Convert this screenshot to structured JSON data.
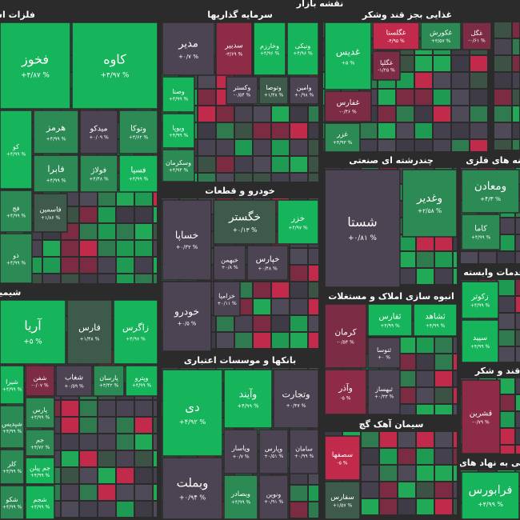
{
  "title": "نقشه بازار",
  "sectors": [
    {
      "name": "فلزات اساسی",
      "tiles": [
        {
          "symbol": "فخوز",
          "change": "+۴/۸۷ %",
          "color": "#17b55b"
        },
        {
          "symbol": "کاوه",
          "change": "+۴/۹۷ %",
          "color": "#17b55b"
        },
        {
          "symbol": "کو",
          "change": "+۴/۹۹ %",
          "color": "#17b55b"
        },
        {
          "symbol": "هرمز",
          "change": "+۴/۹۹ %",
          "color": "#2c8a55"
        },
        {
          "symbol": "میدکو",
          "change": "+۰/۰۹ %",
          "color": "#4c4453"
        },
        {
          "symbol": "وتوکا",
          "change": "+۴/۶۲ %",
          "color": "#2c8a55"
        },
        {
          "symbol": "فابرا",
          "change": "+۴/۹۹ %",
          "color": "#2c8a55"
        },
        {
          "symbol": "فولاژ",
          "change": "+۴/۴۸ %",
          "color": "#2c8a55"
        },
        {
          "symbol": "فسپا",
          "change": "+۴/۹۹ %",
          "color": "#17b55b"
        },
        {
          "symbol": "فج",
          "change": "+۴/۹۹ %",
          "color": "#2c8a55"
        },
        {
          "symbol": "ذو",
          "change": "+۴/۹۹ %",
          "color": "#2c8a55"
        },
        {
          "symbol": "فاسمین",
          "change": "+۱/۸۶ %",
          "color": "#3d5a4a"
        }
      ]
    },
    {
      "name": "سرمایه گذاریها",
      "tiles": [
        {
          "symbol": "مدیر",
          "change": "+۰/۷ %",
          "color": "#4c4453"
        },
        {
          "symbol": "سدبیر",
          "change": "-۳/۶۹ %",
          "color": "#8e2c47"
        },
        {
          "symbol": "وخارزم",
          "change": "+۴/۹۶ %",
          "color": "#17b55b"
        },
        {
          "symbol": "ونیکی",
          "change": "+۴/۹۶ %",
          "color": "#17b55b"
        },
        {
          "symbol": "وصنا",
          "change": "+۴/۹۹ %",
          "color": "#17b55b"
        },
        {
          "symbol": "وکستر",
          "change": "-۰/۵۴ %",
          "color": "#4c4453"
        },
        {
          "symbol": "وتوصا",
          "change": "+۱/۳۸ %",
          "color": "#3d5a4a"
        },
        {
          "symbol": "وامین",
          "change": "+۰/۹۸ %",
          "color": "#4c4453"
        },
        {
          "symbol": "ویوپا",
          "change": "+۴/۹۹ %",
          "color": "#17b55b"
        },
        {
          "symbol": "وسکرمان",
          "change": "+۴/۹۴ %",
          "color": "#2c8a55"
        }
      ]
    },
    {
      "name": "غذایی بجز قند وشکر",
      "tiles": [
        {
          "symbol": "غدیس",
          "change": "+۵ %",
          "color": "#17b55b"
        },
        {
          "symbol": "غگلستا",
          "change": "-۴/۹۵ %",
          "color": "#c22a4b"
        },
        {
          "symbol": "غکورش",
          "change": "+۳/۵۷ %",
          "color": "#2c8a55"
        },
        {
          "symbol": "غگل",
          "change": "-۰/۶۱ %",
          "color": "#7c2c44"
        },
        {
          "symbol": "غگلپا",
          "change": "-۱/۲۵ %",
          "color": "#7c2c44"
        },
        {
          "symbol": "غفارس",
          "change": "-۰/۴۶ %",
          "color": "#7c2c44"
        },
        {
          "symbol": "غزر",
          "change": "+۴/۹۳ %",
          "color": "#2c8a55"
        }
      ]
    },
    {
      "name": "چندرشته ای صنعتی",
      "tiles": [
        {
          "symbol": "شستا",
          "change": "+۰/۸۱ %",
          "color": "#4c4453"
        },
        {
          "symbol": "وغدیر",
          "change": "+۲/۵۸ %",
          "color": "#2c8a55"
        }
      ]
    },
    {
      "name": "کانه های فلزی",
      "tiles": [
        {
          "symbol": "ومعادن",
          "change": "+۴/۳ %",
          "color": "#2c8a55"
        },
        {
          "symbol": "کاما",
          "change": "+۴/۹۹ %",
          "color": "#2c8a55"
        }
      ]
    },
    {
      "name": "خدمات وابسته",
      "tiles": [
        {
          "symbol": "زکوثر",
          "change": "+۴/۹۹ %",
          "color": "#17b55b"
        },
        {
          "symbol": "سپید",
          "change": "+۴/۹۹ %",
          "color": "#17b55b"
        }
      ]
    },
    {
      "name": "قند و شکر",
      "tiles": [
        {
          "symbol": "قشرین",
          "change": "-۰/۷۹ %",
          "color": "#8e2c47"
        }
      ]
    },
    {
      "name": "کمکی به نهاد های",
      "tiles": [
        {
          "symbol": "فرابورس",
          "change": "+۴/۹۹ %",
          "color": "#17b55b"
        }
      ]
    },
    {
      "name": "انبوه سازی املاک و مستغلات",
      "tiles": [
        {
          "symbol": "کرمان",
          "change": "-۰/۵۴ %",
          "color": "#7c2c44"
        },
        {
          "symbol": "ثفارس",
          "change": "+۴/۹۹ %",
          "color": "#17b55b"
        },
        {
          "symbol": "ثشاهد",
          "change": "+۴/۹۹ %",
          "color": "#17b55b"
        },
        {
          "symbol": "ثنوسا",
          "change": "+۰ %",
          "color": "#4c4453"
        },
        {
          "symbol": "وآذر",
          "change": "-۵ %",
          "color": "#8e2c47"
        },
        {
          "symbol": "ثبهساز",
          "change": "+۰/۳۳ %",
          "color": "#4c4453"
        }
      ]
    },
    {
      "name": "سیمان آهک گچ",
      "tiles": [
        {
          "symbol": "سصفها",
          "change": "-۵ %",
          "color": "#c22a4b"
        },
        {
          "symbol": "سفارس",
          "change": "+۱/۵۷ %",
          "color": "#3d5a4a"
        }
      ]
    },
    {
      "name": "بانکها و موسسات اعتباری",
      "tiles": [
        {
          "symbol": "دی",
          "change": "+۴/۹۲ %",
          "color": "#17b55b"
        },
        {
          "symbol": "وآیند",
          "change": "+۴/۹۹ %",
          "color": "#17b55b"
        },
        {
          "symbol": "وتجارت",
          "change": "+۰/۴۷ %",
          "color": "#4c4453"
        },
        {
          "symbol": "وپاسار",
          "change": "+۰/۷ %",
          "color": "#4c4453"
        },
        {
          "symbol": "وپارس",
          "change": "+۰/۵۱ %",
          "color": "#4c4453"
        },
        {
          "symbol": "سامان",
          "change": "+۰/۹۹ %",
          "color": "#4c4453"
        },
        {
          "symbol": "وبملت",
          "change": "+۰/۹۴ %",
          "color": "#4c4453"
        },
        {
          "symbol": "وبصادر",
          "change": "+۴/۹۹ %",
          "color": "#2c8a55"
        },
        {
          "symbol": "ونوین",
          "change": "+۰/۹۱ %",
          "color": "#4c4453"
        }
      ]
    },
    {
      "name": "خودرو و قطعات",
      "tiles": [
        {
          "symbol": "خساپا",
          "change": "+۰/۳۲ %",
          "color": "#4c4453"
        },
        {
          "symbol": "خگستر",
          "change": "+۰/۱۳ %",
          "color": "#3d5a4a"
        },
        {
          "symbol": "خزر",
          "change": "+۴/۹۷ %",
          "color": "#17b55b"
        },
        {
          "symbol": "خبهمن",
          "change": "+۰/۸ %",
          "color": "#4c4453"
        },
        {
          "symbol": "خپارس",
          "change": "+۰/۴۸ %",
          "color": "#4c4453"
        },
        {
          "symbol": "خزامیا",
          "change": "+۰/۱۱ %",
          "color": "#4c4453"
        },
        {
          "symbol": "خودرو",
          "change": "+۰/۵ %",
          "color": "#4c4453"
        }
      ]
    },
    {
      "name": "شیمیایی",
      "tiles": [
        {
          "symbol": "آریا",
          "change": "+۵ %",
          "color": "#17b55b"
        },
        {
          "symbol": "فارس",
          "change": "+۱/۴۸ %",
          "color": "#3d5a4a"
        },
        {
          "symbol": "زاگرس",
          "change": "+۴/۹۷ %",
          "color": "#17b55b"
        },
        {
          "symbol": "شیرا",
          "change": "+۴/۹۹ %",
          "color": "#17b55b"
        },
        {
          "symbol": "شفن",
          "change": "-۰/۰۷ %",
          "color": "#7c2c44"
        },
        {
          "symbol": "شغاب",
          "change": "+۰/۵۹ %",
          "color": "#4c4453"
        },
        {
          "symbol": "پارسان",
          "change": "+۳/۴۲ %",
          "color": "#2c8a55"
        },
        {
          "symbol": "وپترو",
          "change": "+۴/۹۹ %",
          "color": "#17b55b"
        },
        {
          "symbol": "پارس",
          "change": "+۴/۹۹ %",
          "color": "#2c8a55"
        },
        {
          "symbol": "شپدیس",
          "change": "+۴/۹۹ %",
          "color": "#2c8a55"
        },
        {
          "symbol": "جم",
          "change": "+۴/۷۲ %",
          "color": "#2c8a55"
        },
        {
          "symbol": "جم پیلن",
          "change": "+۴/۹۹ %",
          "color": "#17b55b"
        },
        {
          "symbol": "کلر",
          "change": "+۴/۹۹ %",
          "color": "#2c8a55"
        },
        {
          "symbol": "شجم",
          "change": "+۴/۹۹ %",
          "color": "#17b55b"
        },
        {
          "symbol": "شکو",
          "change": "+۴/۹۹ %",
          "color": "#2c8a55"
        }
      ]
    }
  ]
}
